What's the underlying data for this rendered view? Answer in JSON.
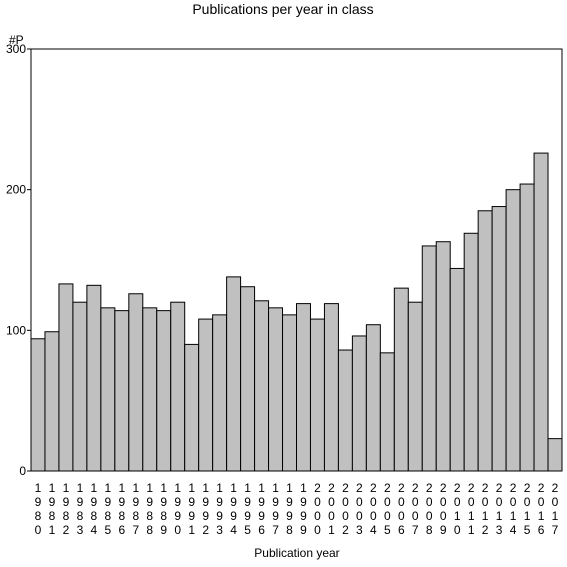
{
  "chart_data": {
    "type": "bar",
    "title": "Publications per year in class",
    "xlabel": "Publication year",
    "ylabel": "#P",
    "ylim": [
      0,
      300
    ],
    "yticks": [
      "0",
      "100",
      "200",
      "300"
    ],
    "grid": false,
    "bar_color": "#c0c0c0",
    "categories": [
      "1980",
      "1981",
      "1982",
      "1983",
      "1984",
      "1985",
      "1986",
      "1987",
      "1988",
      "1989",
      "1990",
      "1991",
      "1992",
      "1993",
      "1994",
      "1995",
      "1996",
      "1997",
      "1998",
      "1999",
      "2000",
      "2001",
      "2002",
      "2003",
      "2004",
      "2005",
      "2006",
      "2007",
      "2008",
      "2009",
      "2010",
      "2011",
      "2012",
      "2013",
      "2014",
      "2015",
      "2016",
      "2017"
    ],
    "values": [
      94,
      99,
      133,
      120,
      132,
      116,
      114,
      126,
      116,
      114,
      120,
      90,
      108,
      111,
      138,
      131,
      121,
      116,
      111,
      119,
      108,
      119,
      86,
      96,
      104,
      84,
      130,
      120,
      160,
      163,
      144,
      169,
      185,
      188,
      200,
      204,
      226,
      23
    ]
  }
}
